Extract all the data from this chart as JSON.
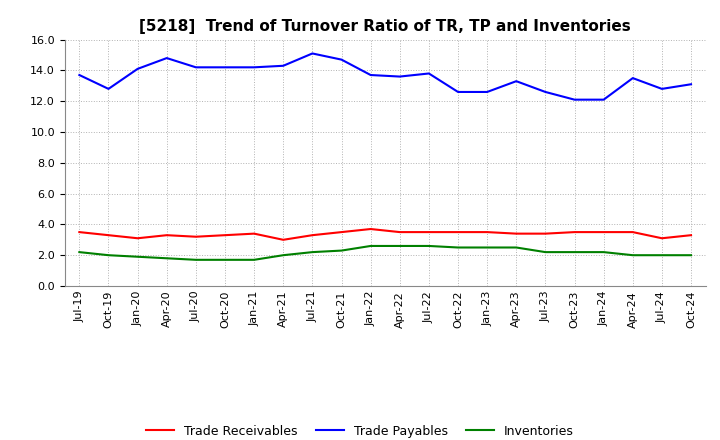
{
  "title": "[5218]  Trend of Turnover Ratio of TR, TP and Inventories",
  "x_labels": [
    "Jul-19",
    "Oct-19",
    "Jan-20",
    "Apr-20",
    "Jul-20",
    "Oct-20",
    "Jan-21",
    "Apr-21",
    "Jul-21",
    "Oct-21",
    "Jan-22",
    "Apr-22",
    "Jul-22",
    "Oct-22",
    "Jan-23",
    "Apr-23",
    "Jul-23",
    "Oct-23",
    "Jan-24",
    "Apr-24",
    "Jul-24",
    "Oct-24"
  ],
  "trade_receivables": [
    3.5,
    3.3,
    3.1,
    3.3,
    3.2,
    3.3,
    3.4,
    3.0,
    3.3,
    3.5,
    3.7,
    3.5,
    3.5,
    3.5,
    3.5,
    3.4,
    3.4,
    3.5,
    3.5,
    3.5,
    3.1,
    3.3
  ],
  "trade_payables": [
    13.7,
    12.8,
    14.1,
    14.8,
    14.2,
    14.2,
    14.2,
    14.3,
    15.1,
    14.7,
    13.7,
    13.6,
    13.8,
    12.6,
    12.6,
    13.3,
    12.6,
    12.1,
    12.1,
    13.5,
    12.8,
    13.1
  ],
  "inventories": [
    2.2,
    2.0,
    1.9,
    1.8,
    1.7,
    1.7,
    1.7,
    2.0,
    2.2,
    2.3,
    2.6,
    2.6,
    2.6,
    2.5,
    2.5,
    2.5,
    2.2,
    2.2,
    2.2,
    2.0,
    2.0,
    2.0
  ],
  "tr_color": "#ff0000",
  "tp_color": "#0000ff",
  "inv_color": "#008000",
  "ylim": [
    0.0,
    16.0
  ],
  "yticks": [
    0.0,
    2.0,
    4.0,
    6.0,
    8.0,
    10.0,
    12.0,
    14.0,
    16.0
  ],
  "background_color": "#ffffff",
  "grid_color": "#aaaaaa",
  "title_fontsize": 11,
  "legend_fontsize": 9,
  "tick_fontsize": 8
}
